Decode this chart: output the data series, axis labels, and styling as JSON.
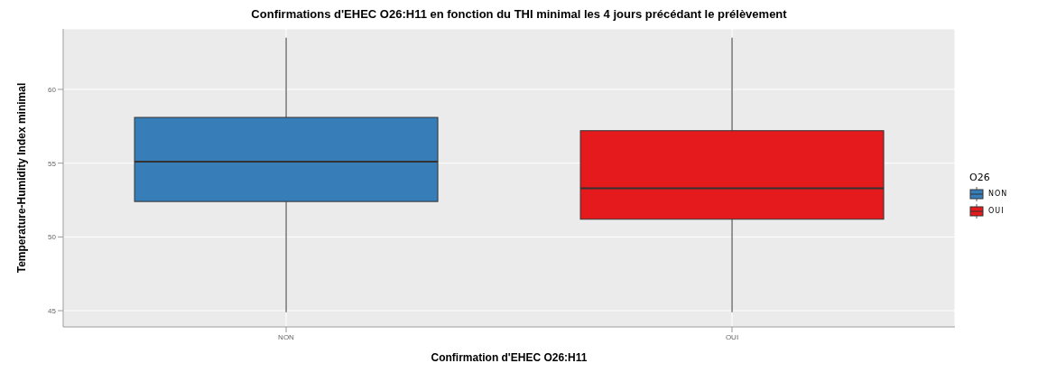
{
  "chart_data": {
    "type": "box",
    "title": "Confirmations d'EHEC O26:H11 en fonction du THI minimal les 4 jours précédant le prélèvement",
    "xlabel": "Confirmation d'EHEC O26:H11",
    "ylabel": "Temperature-Humidity Index minimal",
    "legend_title": "O26",
    "categories": [
      "NON",
      "OUI"
    ],
    "series": [
      {
        "name": "NON",
        "color": "#377eb8",
        "boxes": [
          {
            "low": 44.9,
            "q1": 52.4,
            "median": 55.1,
            "q3": 58.1,
            "high": 63.5
          },
          null
        ]
      },
      {
        "name": "OUI",
        "color": "#e41a1c",
        "boxes": [
          null,
          {
            "low": 44.9,
            "q1": 51.2,
            "median": 53.3,
            "q3": 57.2,
            "high": 63.5
          }
        ]
      }
    ],
    "ylim": [
      43.9,
      64.1
    ],
    "yticks": [
      45,
      50,
      55,
      60
    ],
    "grid": true,
    "legend": "right"
  }
}
